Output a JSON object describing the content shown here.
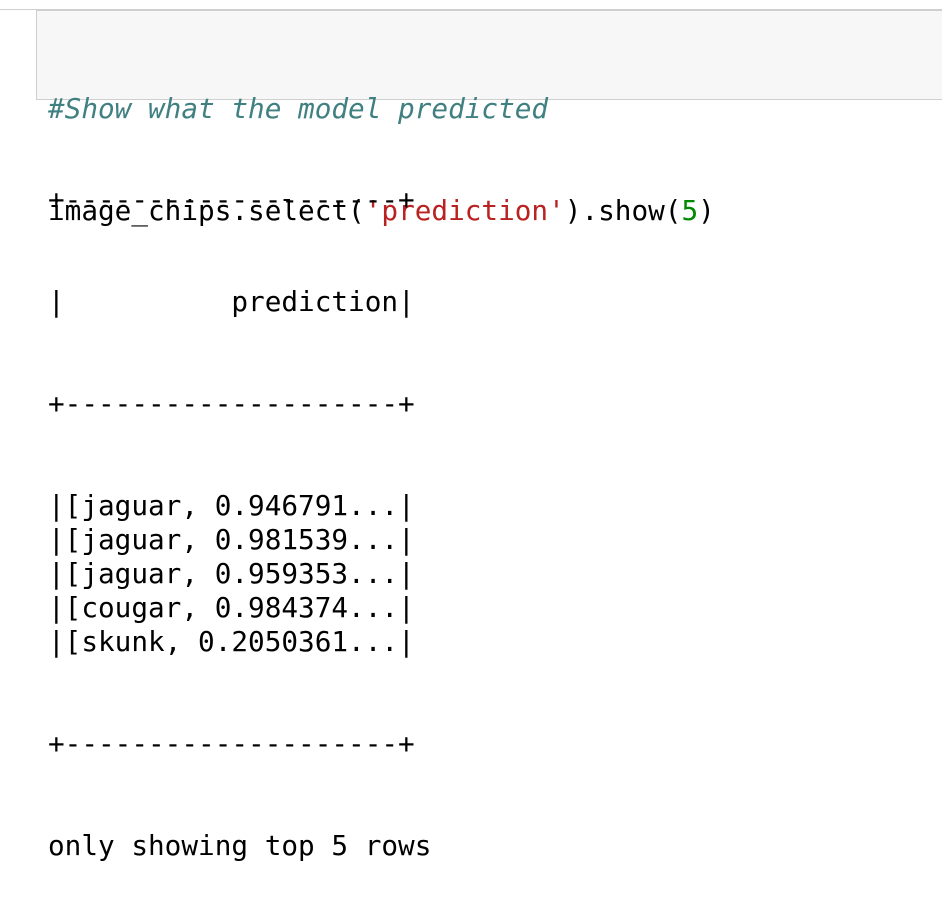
{
  "cell": {
    "comment": "#Show what the model predicted",
    "code": {
      "object": "image_chips",
      "call1": ".select(",
      "arg1": "'prediction'",
      "call2": ").show(",
      "arg2": "5",
      "end": ")"
    }
  },
  "output": {
    "border": "+--------------------+",
    "header": "|          prediction|",
    "rows": [
      "|[jaguar, 0.946791...|",
      "|[jaguar, 0.981539...|",
      "|[jaguar, 0.959353...|",
      "|[cougar, 0.984374...|",
      "|[skunk, 0.2050361...|"
    ],
    "footer": "only showing top 5 rows"
  }
}
